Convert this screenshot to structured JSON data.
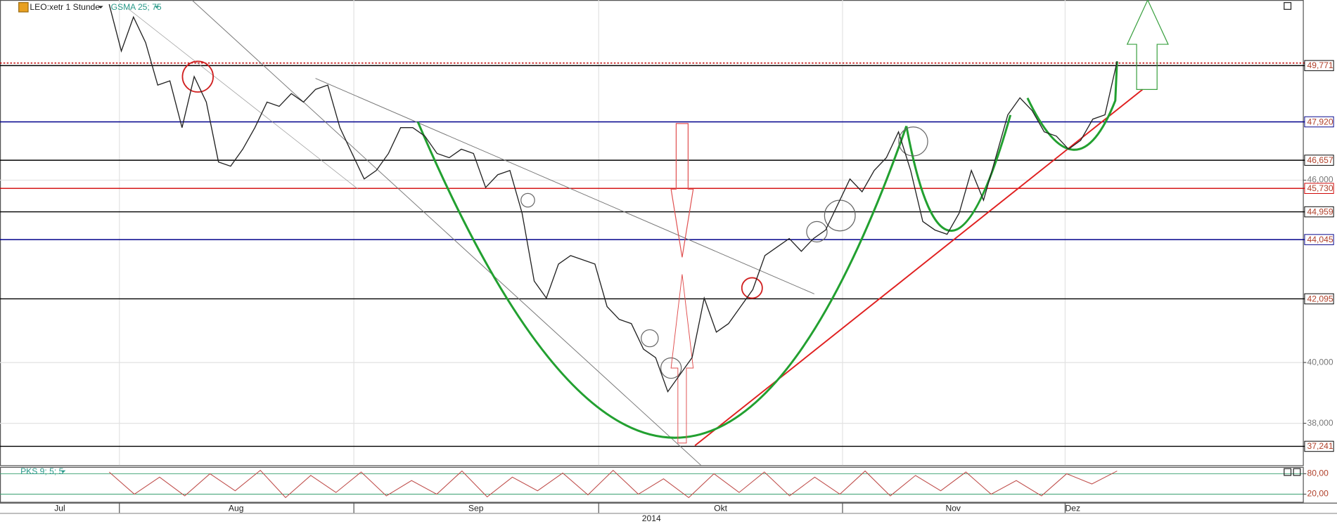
{
  "header": {
    "symbol": "LEO:xetr 1 Stunde"
  },
  "chart_data": [
    {
      "type": "line",
      "indicator": "GSMA 25; 75",
      "color": "#222222",
      "values": [
        51.79,
        50.25,
        51.37,
        50.53,
        49.13,
        49.27,
        47.73,
        49.41,
        48.57,
        46.6,
        46.46,
        47.02,
        47.73,
        48.57,
        48.43,
        48.85,
        48.57,
        48.99,
        49.13,
        47.73,
        46.88,
        46.04,
        46.32,
        46.88,
        47.73,
        47.73,
        47.45,
        46.88,
        46.74,
        47.02,
        46.88,
        45.76,
        46.18,
        46.32,
        44.92,
        42.68,
        42.12,
        43.24,
        43.52,
        43.38,
        43.24,
        41.84,
        41.42,
        41.28,
        40.44,
        40.16,
        39.04,
        39.6,
        40.16,
        42.12,
        41.0,
        41.28,
        41.84,
        42.4,
        43.52,
        43.8,
        44.08,
        43.66,
        44.08,
        44.36,
        45.2,
        46.04,
        45.62,
        46.32,
        46.74,
        47.59,
        46.32,
        44.64,
        44.36,
        44.22,
        44.92,
        46.32,
        45.34,
        46.74,
        48.15,
        48.71,
        48.29,
        47.59,
        47.45,
        47.02,
        47.31,
        48.01,
        48.15,
        49.91
      ],
      "xlim": [
        -8.99,
        98.3
      ],
      "ylim": [
        36.62,
        51.93
      ],
      "yticks": [
        {
          "value": 38,
          "label": "38,000"
        },
        {
          "value": 40,
          "label": "40,000"
        },
        {
          "value": 46,
          "label": "46,000"
        }
      ],
      "grid": true,
      "xgrid": [
        0.84,
        20.15,
        40.31,
        60.39,
        78.72
      ],
      "xticks": [
        {
          "value": -4.07,
          "label": "Jul"
        },
        {
          "value": 10.45,
          "label": "Aug"
        },
        {
          "value": 30.2,
          "label": "Sep"
        },
        {
          "value": 50.35,
          "label": "Okt"
        },
        {
          "value": 69.5,
          "label": "Nov"
        },
        {
          "value": 79.35,
          "label": "Dez"
        }
      ],
      "xlabel": "2014",
      "levels": [
        {
          "value": 49.855,
          "color": "#c00000",
          "style": "dotted"
        },
        {
          "value": 49.771,
          "label": "49,771",
          "color": "#000000"
        },
        {
          "value": 47.92,
          "label": "47,920",
          "color": "#00008b"
        },
        {
          "value": 46.657,
          "label": "46,657",
          "color": "#000000"
        },
        {
          "value": 45.73,
          "label": "45,730",
          "color": "#d00000"
        },
        {
          "value": 44.959,
          "label": "44,959",
          "color": "#000000"
        },
        {
          "value": 44.045,
          "label": "44,045",
          "color": "#00008b"
        },
        {
          "value": 42.095,
          "label": "42,095",
          "color": "#000000"
        },
        {
          "value": 37.241,
          "label": "37,241",
          "color": "#000000"
        }
      ]
    },
    {
      "type": "line",
      "title": "PKS 9; 5; 5",
      "color": "#c0504d",
      "values": [
        85,
        20,
        70,
        15,
        80,
        30,
        90,
        10,
        75,
        25,
        85,
        15,
        60,
        20,
        88,
        12,
        70,
        30,
        82,
        18,
        90,
        20,
        65,
        10,
        80,
        25,
        85,
        15,
        70,
        20,
        88,
        15,
        75,
        30,
        85,
        20,
        60,
        15,
        80,
        50,
        88
      ],
      "xlim": [
        -8.99,
        98.3
      ],
      "ylim": [
        -5,
        100
      ],
      "yticks": [
        {
          "value": 80,
          "label": "80,00"
        },
        {
          "value": 20,
          "label": "20,00"
        }
      ]
    }
  ]
}
